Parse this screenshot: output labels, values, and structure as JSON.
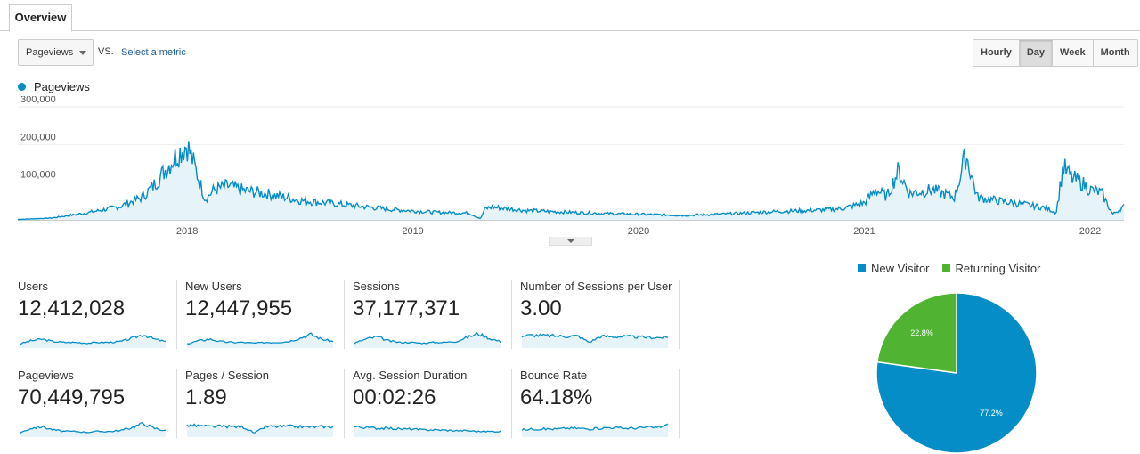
{
  "tab": {
    "label": "Overview"
  },
  "controls": {
    "metric_select": "Pageviews",
    "vs": "VS.",
    "select_metric": "Select a metric",
    "granularity": [
      {
        "label": "Hourly",
        "active": false
      },
      {
        "label": "Day",
        "active": true
      },
      {
        "label": "Week",
        "active": false
      },
      {
        "label": "Month",
        "active": false
      }
    ]
  },
  "colors": {
    "series": "#058dc7",
    "fill": "#e6f4fa",
    "returning": "#50b432"
  },
  "chart_data": {
    "type": "area",
    "series": [
      {
        "name": "Pageviews"
      }
    ],
    "y_ticks": [
      "300,000",
      "200,000",
      "100,000"
    ],
    "ylim": [
      0,
      300000
    ],
    "x_ticks": [
      {
        "label": "2018",
        "value": 2018.0
      },
      {
        "label": "2019",
        "value": 2019.0
      },
      {
        "label": "2020",
        "value": 2020.0
      },
      {
        "label": "2021",
        "value": 2021.0
      },
      {
        "label": "2022",
        "value": 2022.0
      }
    ],
    "xlim": [
      2017.25,
      2022.15
    ],
    "x": [
      2017.25,
      2017.4,
      2017.55,
      2017.7,
      2017.8,
      2017.85,
      2017.9,
      2017.95,
      2018.0,
      2018.04,
      2018.08,
      2018.12,
      2018.18,
      2018.25,
      2018.35,
      2018.5,
      2018.7,
      2018.9,
      2019.1,
      2019.25,
      2019.3,
      2019.32,
      2019.35,
      2019.5,
      2019.7,
      2019.9,
      2020.0,
      2020.2,
      2020.4,
      2020.6,
      2020.8,
      2020.9,
      2021.0,
      2021.05,
      2021.1,
      2021.15,
      2021.2,
      2021.3,
      2021.4,
      2021.45,
      2021.5,
      2021.6,
      2021.7,
      2021.8,
      2021.85,
      2021.88,
      2021.92,
      2021.96,
      2022.0,
      2022.05,
      2022.1,
      2022.15
    ],
    "values": [
      1000,
      5000,
      18000,
      35000,
      60000,
      90000,
      130000,
      170000,
      200000,
      130000,
      55000,
      80000,
      90000,
      78000,
      70000,
      52000,
      40000,
      28000,
      20000,
      18000,
      3000,
      30000,
      34000,
      25000,
      20000,
      16000,
      15000,
      12000,
      16000,
      22000,
      26000,
      30000,
      45000,
      80000,
      62000,
      130000,
      70000,
      80000,
      60000,
      175000,
      60000,
      50000,
      42000,
      32000,
      20000,
      140000,
      110000,
      100000,
      80000,
      72000,
      15000,
      35000
    ]
  },
  "metrics": [
    {
      "name": "Users",
      "value": "12,412,028"
    },
    {
      "name": "New Users",
      "value": "12,447,955"
    },
    {
      "name": "Sessions",
      "value": "37,177,371"
    },
    {
      "name": "Number of Sessions per User",
      "value": "3.00"
    },
    {
      "name": "Pageviews",
      "value": "70,449,795"
    },
    {
      "name": "Pages / Session",
      "value": "1.89"
    },
    {
      "name": "Avg. Session Duration",
      "value": "00:02:26"
    },
    {
      "name": "Bounce Rate",
      "value": "64.18%"
    }
  ],
  "visitor_pie": {
    "type": "pie",
    "slices": [
      {
        "name": "New Visitor",
        "value": 77.2,
        "label": "77.2%",
        "color": "#058dc7"
      },
      {
        "name": "Returning Visitor",
        "value": 22.8,
        "label": "22.8%",
        "color": "#50b432"
      }
    ]
  }
}
